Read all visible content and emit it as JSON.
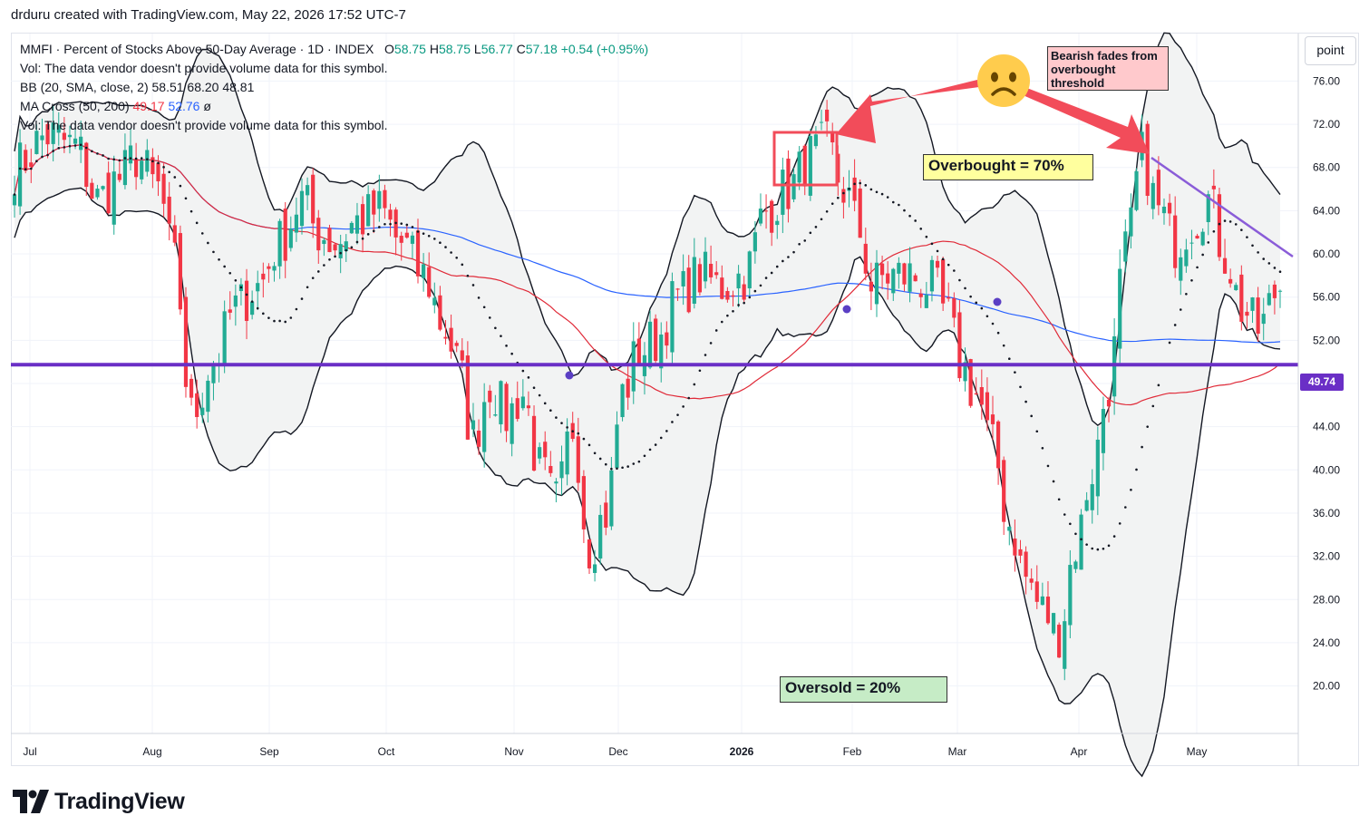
{
  "header": {
    "credit": "drduru created with TradingView.com, May 22, 2026 17:52 UTC-7"
  },
  "legend": {
    "title": "MMFI · Percent of Stocks Above 50-Day Average · 1D · INDEX",
    "ohlc": {
      "o_label": "O",
      "o": "58.75",
      "h_label": "H",
      "h": "58.75",
      "l_label": "L",
      "l": "56.77",
      "c_label": "C",
      "c": "57.18",
      "chg": "+0.54 (+0.95%)"
    },
    "vol1": "Vol: The data vendor doesn't provide volume data for this symbol.",
    "bb_label": "BB (20, SMA, close, 2)",
    "bb_vals": "58.51  68.20  48.81",
    "ma_label": "MA Cross (50, 200)",
    "ma_val1": "49.17",
    "ma_val2": "52.76",
    "ma_sym": "ø",
    "vol2": "Vol: The data vendor doesn't provide volume data for this symbol."
  },
  "scale_button": "point",
  "price_tag": "49.74",
  "annotations": {
    "overbought": "Overbought = 70%",
    "oversold": "Oversold = 20%",
    "bearish": "Bearish fades from overbought threshold"
  },
  "footer": {
    "brand": "TradingView"
  },
  "colors": {
    "up": "#22ab94",
    "down": "#f23645",
    "band_fill": "#f2f3f3",
    "ma50": "#e02a38",
    "ma200": "#2962ff",
    "hline": "#6a2fc6",
    "trend": "#8a5cd8",
    "arrow": "#f24c5a"
  },
  "chart_data": {
    "type": "candlestick",
    "title": "MMFI · Percent of Stocks Above 50-Day Average · 1D · INDEX",
    "y_ticks": [
      20,
      24,
      28,
      32,
      36,
      40,
      44,
      48,
      52,
      56,
      60,
      64,
      68,
      72,
      76
    ],
    "x_ticks": [
      "Jul",
      "Aug",
      "Sep",
      "Oct",
      "Nov",
      "Dec",
      "2026",
      "Feb",
      "Mar",
      "Apr",
      "May"
    ],
    "ylim": [
      15.6,
      80.4
    ],
    "hline": 49.74,
    "grid": true,
    "legend_position": "top-left"
  }
}
